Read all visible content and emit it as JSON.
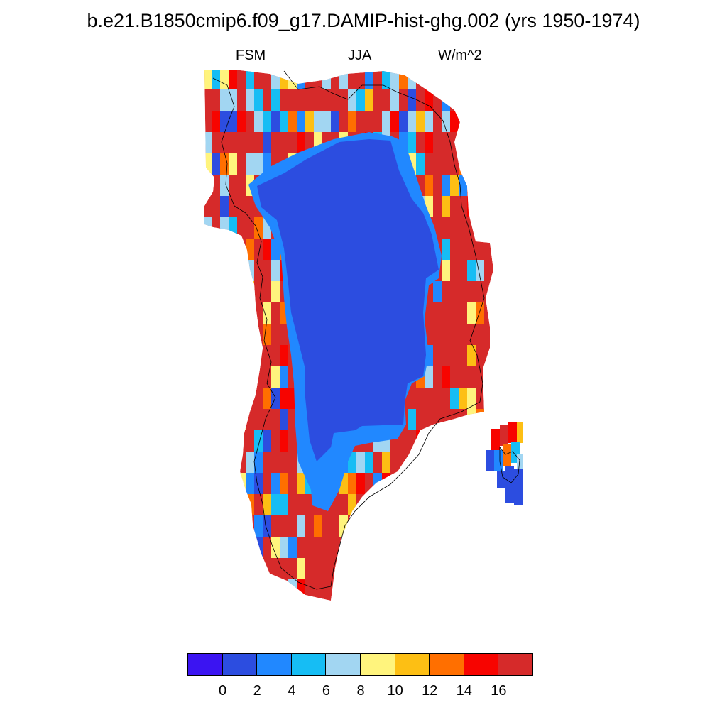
{
  "title": "b.e21.B1850cmip6.f09_g17.DAMIP-hist-ghg.002 (yrs 1950-1974)",
  "subtitles": {
    "left": "FSM",
    "center": "JJA",
    "right": "W/m^2"
  },
  "colorbar": {
    "colors": [
      "#3b14f2",
      "#2c4de0",
      "#2188ff",
      "#16bdf4",
      "#a2d6f2",
      "#fff47d",
      "#fdbf14",
      "#ff6f00",
      "#f70400",
      "#d62a2a"
    ],
    "labels": [
      "0",
      "2",
      "4",
      "6",
      "8",
      "10",
      "12",
      "14",
      "16"
    ]
  },
  "map": {
    "region": "Greenland",
    "colors": {
      "interior": "#2c4de0",
      "mid_blue": "#2188ff",
      "coast_red": "#d62a2a"
    }
  }
}
